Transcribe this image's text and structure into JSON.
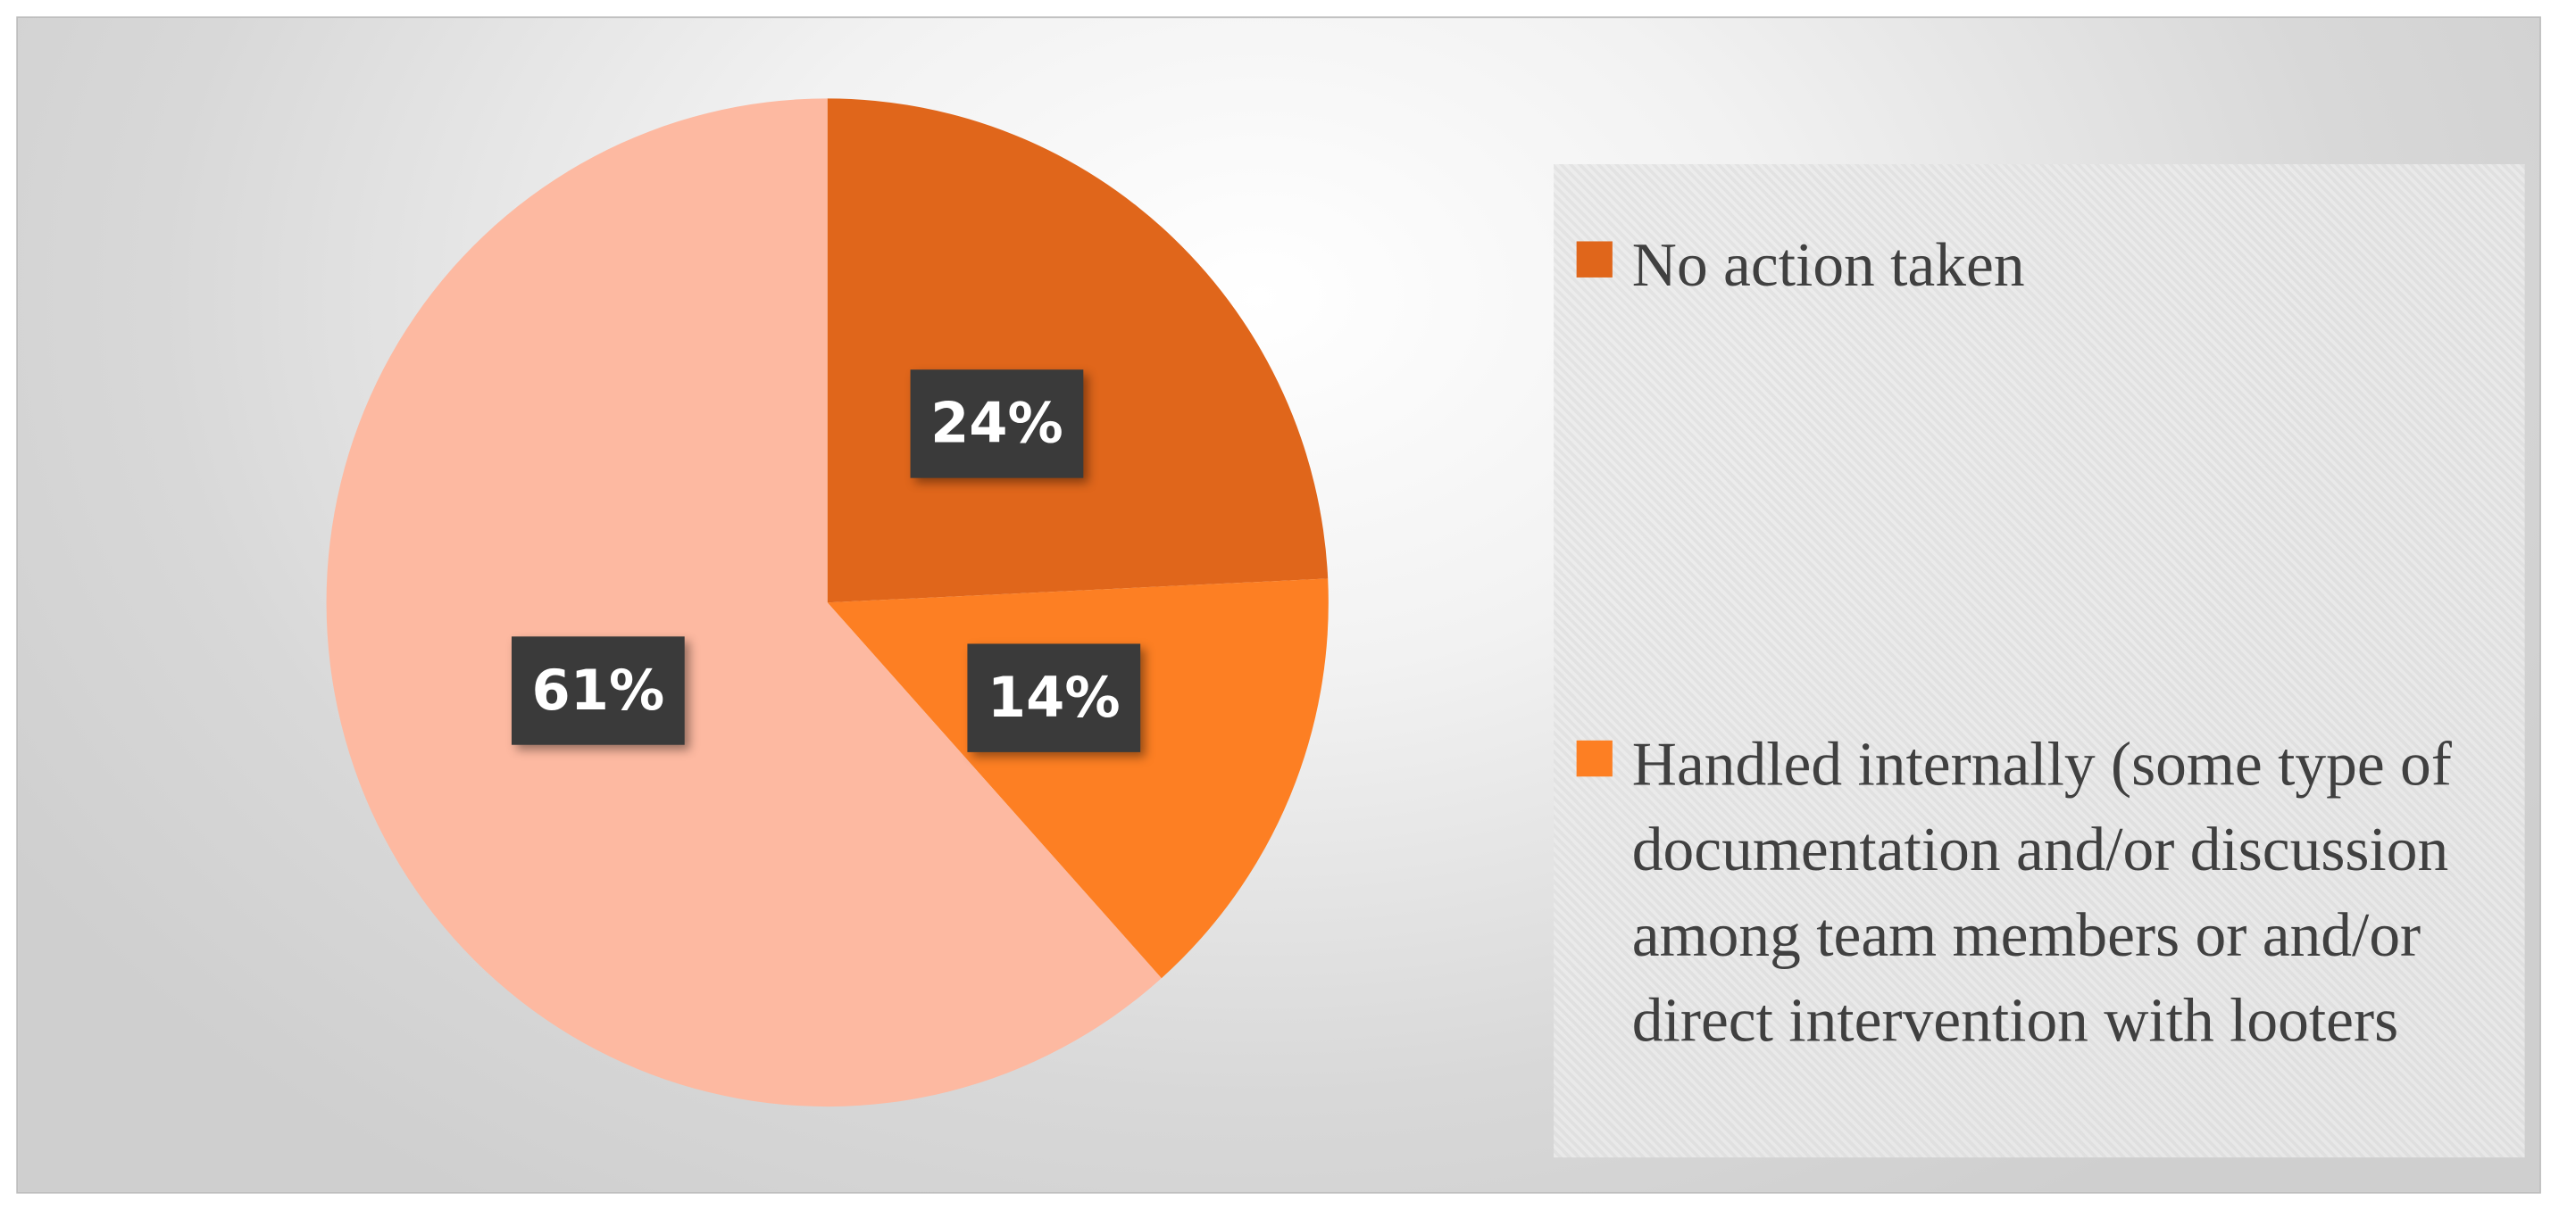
{
  "chart_data": {
    "type": "pie",
    "categories": [
      "No action taken",
      "Handled internally (some type of documentation and/or discussion among team members or and/or direct intervention with looters",
      null
    ],
    "values": [
      24,
      14,
      61
    ],
    "value_labels": [
      "24%",
      "14%",
      "61%"
    ],
    "colors": [
      "#e0661b",
      "#fd7f23",
      "#fdb9a1"
    ],
    "legend": "right"
  }
}
